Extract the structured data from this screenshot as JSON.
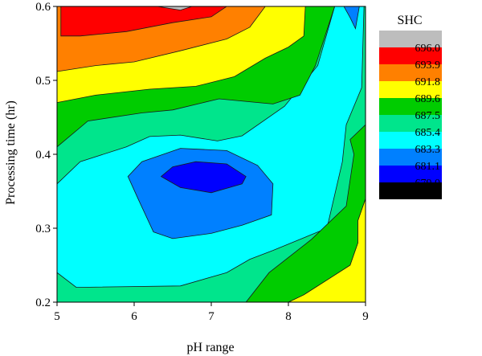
{
  "chart_data": {
    "type": "heatmap",
    "subtype": "filled-contour",
    "xlabel": "pH range",
    "ylabel": "Processing time (hr)",
    "xlim": [
      5,
      9
    ],
    "ylim": [
      0.2,
      0.6
    ],
    "x_ticks": [
      "5",
      "6",
      "7",
      "8",
      "9"
    ],
    "y_ticks": [
      "0.2",
      "0.3",
      "0.4",
      "0.5",
      "0.6"
    ],
    "legend": {
      "title": "SHC",
      "placement": "right",
      "levels": [
        "696.0",
        "693.9",
        "691.8",
        "689.6",
        "687.5",
        "685.4",
        "683.3",
        "681.1",
        "679.0"
      ],
      "colors": [
        "#bdbdbd",
        "#ff0000",
        "#ff8000",
        "#ffff00",
        "#00cc00",
        "#00e58c",
        "#00ffff",
        "#0080ff",
        "#0000ff",
        "#000000"
      ]
    },
    "regions": [
      {
        "level": "below 685.4",
        "color": "#00e58c",
        "polygon": [
          [
            5,
            0.2
          ],
          [
            9,
            0.2
          ],
          [
            9,
            0.6
          ],
          [
            5,
            0.6
          ]
        ]
      },
      {
        "level": "683.3-685.4",
        "color": "#00ffff",
        "polygon": [
          [
            5.25,
            0.22
          ],
          [
            6.6,
            0.222
          ],
          [
            7.2,
            0.24
          ],
          [
            7.5,
            0.258
          ],
          [
            7.8,
            0.27
          ],
          [
            8.5,
            0.3
          ],
          [
            8.7,
            0.39
          ],
          [
            8.75,
            0.44
          ],
          [
            8.95,
            0.49
          ],
          [
            8.98,
            0.6
          ],
          [
            8.6,
            0.6
          ],
          [
            8.38,
            0.52
          ],
          [
            7.95,
            0.465
          ],
          [
            7.4,
            0.425
          ],
          [
            7.08,
            0.418
          ],
          [
            6.6,
            0.426
          ],
          [
            6.2,
            0.424
          ],
          [
            5.9,
            0.41
          ],
          [
            5.3,
            0.39
          ],
          [
            5,
            0.36
          ],
          [
            5,
            0.24
          ]
        ]
      },
      {
        "level": "681.1-683.3",
        "color": "#0080ff",
        "polygon": [
          [
            6.25,
            0.295
          ],
          [
            6.5,
            0.286
          ],
          [
            7.0,
            0.293
          ],
          [
            7.4,
            0.304
          ],
          [
            7.78,
            0.318
          ],
          [
            7.8,
            0.36
          ],
          [
            7.6,
            0.385
          ],
          [
            7.2,
            0.405
          ],
          [
            6.6,
            0.408
          ],
          [
            6.1,
            0.39
          ],
          [
            5.92,
            0.37
          ],
          [
            6.05,
            0.34
          ]
        ]
      },
      {
        "level": "679.0-681.1",
        "color": "#0000ff",
        "polygon": [
          [
            6.35,
            0.37
          ],
          [
            6.6,
            0.355
          ],
          [
            7.0,
            0.348
          ],
          [
            7.4,
            0.36
          ],
          [
            7.45,
            0.37
          ],
          [
            7.2,
            0.387
          ],
          [
            6.8,
            0.39
          ],
          [
            6.5,
            0.383
          ]
        ]
      },
      {
        "level": "687.5-689.6",
        "color": "#00cc00",
        "polygon": [
          [
            5,
            0.41
          ],
          [
            5.4,
            0.445
          ],
          [
            6.1,
            0.456
          ],
          [
            6.5,
            0.46
          ],
          [
            7.1,
            0.475
          ],
          [
            7.8,
            0.468
          ],
          [
            8.15,
            0.48
          ],
          [
            8.35,
            0.52
          ],
          [
            8.6,
            0.6
          ],
          [
            5,
            0.6
          ]
        ]
      },
      {
        "level": "689.6-691.8",
        "color": "#ffff00",
        "polygon": [
          [
            5,
            0.47
          ],
          [
            5.5,
            0.48
          ],
          [
            6.2,
            0.488
          ],
          [
            6.8,
            0.492
          ],
          [
            7.3,
            0.505
          ],
          [
            7.7,
            0.53
          ],
          [
            8.0,
            0.545
          ],
          [
            8.2,
            0.56
          ],
          [
            8.22,
            0.6
          ],
          [
            5,
            0.6
          ]
        ]
      },
      {
        "level": "691.8-693.9",
        "color": "#ff8000",
        "polygon": [
          [
            5,
            0.512
          ],
          [
            5.5,
            0.52
          ],
          [
            6.0,
            0.525
          ],
          [
            6.6,
            0.54
          ],
          [
            7.2,
            0.556
          ],
          [
            7.5,
            0.572
          ],
          [
            7.7,
            0.6
          ],
          [
            5,
            0.6
          ]
        ]
      },
      {
        "level": "693.9-696.0",
        "color": "#ff0000",
        "polygon": [
          [
            5.05,
            0.56
          ],
          [
            5.3,
            0.56
          ],
          [
            5.9,
            0.566
          ],
          [
            6.5,
            0.578
          ],
          [
            7.0,
            0.586
          ],
          [
            7.2,
            0.6
          ],
          [
            5.05,
            0.6
          ]
        ]
      },
      {
        "level": "above 696.0",
        "color": "#bdbdbd",
        "polygon": [
          [
            6.3,
            0.6
          ],
          [
            6.6,
            0.595
          ],
          [
            6.75,
            0.6
          ]
        ]
      },
      {
        "level": "689.6-691.8 (lower right)",
        "color": "#ffff00",
        "polygon": [
          [
            8.0,
            0.2
          ],
          [
            8.2,
            0.21
          ],
          [
            8.5,
            0.23
          ],
          [
            8.8,
            0.25
          ],
          [
            8.9,
            0.28
          ],
          [
            8.9,
            0.31
          ],
          [
            9,
            0.34
          ],
          [
            9,
            0.2
          ]
        ]
      },
      {
        "level": "687.5-689.6 (lower right)",
        "color": "#00cc00",
        "polygon": [
          [
            7.45,
            0.2
          ],
          [
            7.75,
            0.24
          ],
          [
            8.3,
            0.285
          ],
          [
            8.75,
            0.33
          ],
          [
            8.85,
            0.4
          ],
          [
            8.8,
            0.42
          ],
          [
            9,
            0.44
          ],
          [
            9,
            0.34
          ],
          [
            8.9,
            0.31
          ],
          [
            8.9,
            0.28
          ],
          [
            8.8,
            0.25
          ],
          [
            8.5,
            0.23
          ],
          [
            8.2,
            0.21
          ],
          [
            8.0,
            0.2
          ]
        ]
      },
      {
        "level": "681.1-683.3 (top right)",
        "color": "#0080ff",
        "polygon": [
          [
            8.72,
            0.6
          ],
          [
            8.8,
            0.585
          ],
          [
            8.87,
            0.57
          ],
          [
            8.92,
            0.6
          ]
        ]
      }
    ]
  }
}
